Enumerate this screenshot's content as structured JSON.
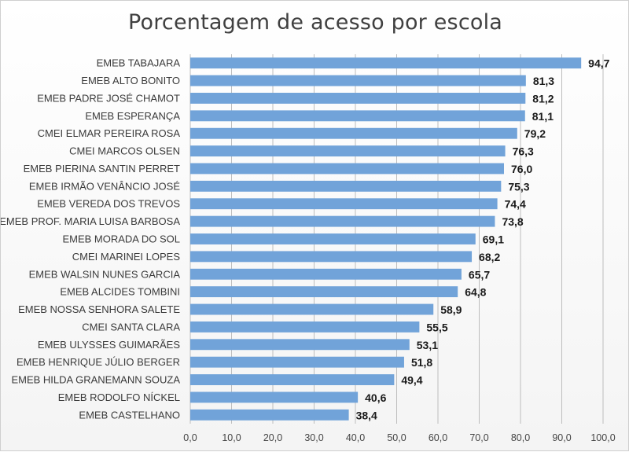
{
  "chart_data": {
    "type": "bar",
    "orientation": "horizontal",
    "title": "Porcentagem de acesso por escola",
    "xlabel": "",
    "ylabel": "",
    "xlim": [
      0,
      100
    ],
    "x_ticks": [
      "0,0",
      "10,0",
      "20,0",
      "30,0",
      "40,0",
      "50,0",
      "60,0",
      "70,0",
      "80,0",
      "90,0",
      "100,0"
    ],
    "grid": true,
    "bar_color": "#71A3D9",
    "categories": [
      "EMEB TABAJARA",
      "EMEB ALTO BONITO",
      "EMEB PADRE JOSÉ CHAMOT",
      "EMEB ESPERANÇA",
      "CMEI ELMAR PEREIRA ROSA",
      "CMEI MARCOS OLSEN",
      "EMEB PIERINA SANTIN PERRET",
      "EMEB IRMÃO VENÂNCIO JOSÉ",
      "EMEB VEREDA DOS TREVOS",
      "EMEB PROF. MARIA LUISA BARBOSA",
      "EMEB MORADA DO SOL",
      "CMEI MARINEI LOPES",
      "EMEB WALSIN NUNES GARCIA",
      "EMEB ALCIDES TOMBINI",
      "EMEB NOSSA SENHORA SALETE",
      "CMEI SANTA CLARA",
      "EMEB ULYSSES GUIMARÃES",
      "EMEB HENRIQUE JÚLIO BERGER",
      "EMEB HILDA GRANEMANN SOUZA",
      "EMEB RODOLFO NÍCKEL",
      "EMEB CASTELHANO"
    ],
    "values": [
      94.7,
      81.3,
      81.2,
      81.1,
      79.2,
      76.3,
      76.0,
      75.3,
      74.4,
      73.8,
      69.1,
      68.2,
      65.7,
      64.8,
      58.9,
      55.5,
      53.1,
      51.8,
      49.4,
      40.6,
      38.4
    ],
    "value_labels": [
      "94,7",
      "81,3",
      "81,2",
      "81,1",
      "79,2",
      "76,3",
      "76,0",
      "75,3",
      "74,4",
      "73,8",
      "69,1",
      "68,2",
      "65,7",
      "64,8",
      "58,9",
      "55,5",
      "53,1",
      "51,8",
      "49,4",
      "40,6",
      "38,4"
    ]
  }
}
